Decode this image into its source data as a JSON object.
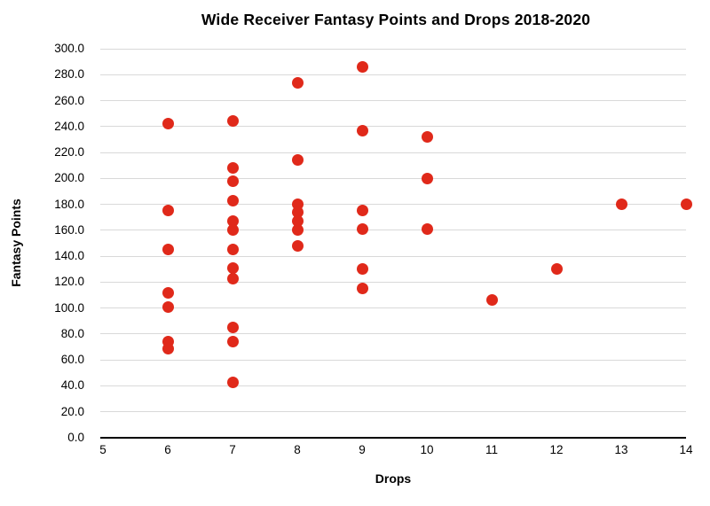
{
  "chart_data": {
    "type": "scatter",
    "title": "Wide Receiver Fantasy Points and Drops 2018-2020",
    "xlabel": "Drops",
    "ylabel": "Fantasy Points",
    "xlim": [
      5,
      14
    ],
    "ylim": [
      0,
      300
    ],
    "x_ticks": [
      5,
      6,
      7,
      8,
      9,
      10,
      11,
      12,
      13,
      14
    ],
    "x_tick_labels": [
      "5",
      "6",
      "7",
      "8",
      "9",
      "10",
      "11",
      "12",
      "13",
      "14"
    ],
    "y_ticks": [
      0,
      20,
      40,
      60,
      80,
      100,
      120,
      140,
      160,
      180,
      200,
      220,
      240,
      260,
      280,
      300
    ],
    "y_tick_labels": [
      "0.0",
      "20.0",
      "40.0",
      "60.0",
      "80.0",
      "100.0",
      "120.0",
      "140.0",
      "160.0",
      "180.0",
      "200.0",
      "220.0",
      "240.0",
      "260.0",
      "280.0",
      "300.0"
    ],
    "grid": "horizontal",
    "legend": "none",
    "point_color": "#e0291a",
    "gridline_color": "#d9d9d9",
    "axis_color": "#000000",
    "points": [
      {
        "x": 6,
        "y": 242
      },
      {
        "x": 6,
        "y": 175
      },
      {
        "x": 6,
        "y": 145
      },
      {
        "x": 6,
        "y": 112
      },
      {
        "x": 6,
        "y": 101
      },
      {
        "x": 6,
        "y": 74
      },
      {
        "x": 6,
        "y": 69
      },
      {
        "x": 7,
        "y": 244
      },
      {
        "x": 7,
        "y": 208
      },
      {
        "x": 7,
        "y": 198
      },
      {
        "x": 7,
        "y": 183
      },
      {
        "x": 7,
        "y": 167
      },
      {
        "x": 7,
        "y": 160
      },
      {
        "x": 7,
        "y": 145
      },
      {
        "x": 7,
        "y": 131
      },
      {
        "x": 7,
        "y": 123
      },
      {
        "x": 7,
        "y": 85
      },
      {
        "x": 7,
        "y": 74
      },
      {
        "x": 7,
        "y": 43
      },
      {
        "x": 8,
        "y": 274
      },
      {
        "x": 8,
        "y": 214
      },
      {
        "x": 8,
        "y": 180
      },
      {
        "x": 8,
        "y": 174
      },
      {
        "x": 8,
        "y": 167
      },
      {
        "x": 8,
        "y": 160
      },
      {
        "x": 8,
        "y": 148
      },
      {
        "x": 9,
        "y": 286
      },
      {
        "x": 9,
        "y": 237
      },
      {
        "x": 9,
        "y": 175
      },
      {
        "x": 9,
        "y": 161
      },
      {
        "x": 9,
        "y": 130
      },
      {
        "x": 9,
        "y": 115
      },
      {
        "x": 10,
        "y": 232
      },
      {
        "x": 10,
        "y": 200
      },
      {
        "x": 10,
        "y": 161
      },
      {
        "x": 11,
        "y": 106
      },
      {
        "x": 12,
        "y": 130
      },
      {
        "x": 13,
        "y": 180
      },
      {
        "x": 14,
        "y": 180
      }
    ]
  }
}
